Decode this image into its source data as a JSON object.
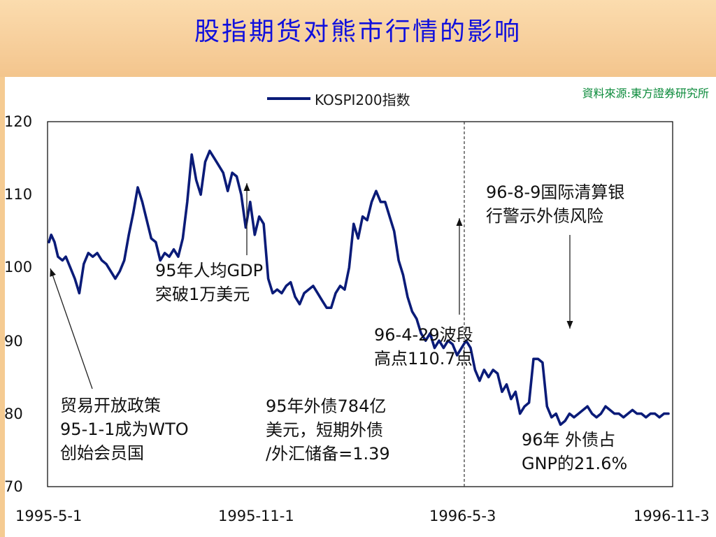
{
  "title": "股指期货对熊市行情的影响",
  "source": "資料來源:東方證券研究所",
  "chart_data": {
    "type": "line",
    "title": "",
    "xlabel": "",
    "ylabel": "",
    "ylim": [
      70,
      120
    ],
    "yticks": [
      70,
      80,
      90,
      100,
      110,
      120
    ],
    "xticks": [
      "1995-5-1",
      "1995-11-1",
      "1996-5-3",
      "1996-11-3"
    ],
    "legend": "top-center",
    "grid": false,
    "series": [
      {
        "name": "KOSPI200指数",
        "color": "#0a1b78",
        "x": [
          0,
          2,
          5,
          8,
          12,
          15,
          19,
          23,
          27,
          31,
          35,
          39,
          43,
          47,
          51,
          55,
          59,
          63,
          67,
          71,
          75,
          79,
          83,
          87,
          91,
          95,
          99,
          103,
          107,
          111,
          115,
          119,
          123,
          127,
          131,
          135,
          139,
          143,
          147,
          151,
          155,
          159,
          163,
          167,
          171,
          175,
          179,
          183,
          187,
          191,
          195,
          199,
          203,
          207,
          211,
          215,
          219,
          223,
          227,
          231,
          235,
          239,
          243,
          247,
          251,
          255,
          259,
          263,
          267,
          271,
          275,
          279,
          283,
          287,
          291,
          295,
          299,
          303,
          307,
          311,
          315,
          319,
          323,
          327,
          331,
          335,
          339,
          343,
          347,
          351,
          355,
          359,
          363,
          367,
          371,
          375,
          379,
          383,
          387,
          391,
          395,
          399,
          403,
          407,
          411,
          415,
          419,
          423,
          427,
          431,
          435,
          439,
          443,
          447,
          451,
          455,
          459,
          463,
          467,
          471,
          475,
          479,
          483,
          487,
          491,
          495,
          499,
          503,
          507,
          511,
          515,
          519,
          523,
          527,
          531,
          535,
          539,
          543,
          547,
          551
        ],
        "values": [
          103.5,
          104.5,
          103.5,
          101.5,
          101,
          101.5,
          100,
          98.5,
          96.5,
          100.5,
          102,
          101.5,
          102,
          101,
          100.5,
          99.5,
          98.5,
          99.5,
          101,
          104.5,
          107.5,
          111,
          109,
          106.5,
          104,
          103.5,
          101,
          102,
          101.5,
          102.5,
          101.5,
          104,
          109,
          115.5,
          112,
          110,
          114.5,
          116,
          115,
          114,
          113,
          110.5,
          113,
          112.5,
          110,
          105.5,
          109,
          104.5,
          107,
          106,
          98.5,
          96.5,
          97,
          96.5,
          97.5,
          98,
          96,
          95,
          96.5,
          97,
          97.5,
          96.5,
          95.5,
          94.5,
          94.5,
          96.5,
          97.5,
          97,
          100,
          106,
          104,
          107,
          106.5,
          109,
          110.5,
          109,
          109,
          107,
          105,
          101,
          99,
          96,
          94,
          93,
          91,
          90,
          91,
          89,
          90,
          89,
          90,
          89.5,
          88,
          89,
          90,
          89,
          86,
          84.5,
          86,
          85,
          86,
          85.5,
          83,
          84,
          82,
          83,
          80,
          81,
          81.5,
          87.5,
          87.5,
          87,
          81,
          79.5,
          80,
          78.5,
          79,
          80,
          79.5,
          80,
          80.5,
          81,
          80,
          79.5,
          80,
          81,
          80.5,
          80,
          80,
          79.5,
          80,
          80.5,
          80,
          80,
          79.5,
          80,
          80,
          79.5,
          80,
          80
        ]
      }
    ]
  },
  "annotations": {
    "trade_policy": [
      "贸易开放政策",
      "95-1-1成为WTO",
      "创始会员国"
    ],
    "gdp": [
      "95年人均GDP",
      "突破1万美元"
    ],
    "debt": [
      "95年外债784亿",
      "美元，短期外债",
      "/外汇储备=1.39"
    ],
    "peak": [
      "96-4-29波段",
      "高点110.7点"
    ],
    "bis": [
      "96-8-9国际清算银",
      "行警示外债风险"
    ],
    "gnp": [
      "96年 外债占",
      "GNP的21.6%"
    ]
  }
}
